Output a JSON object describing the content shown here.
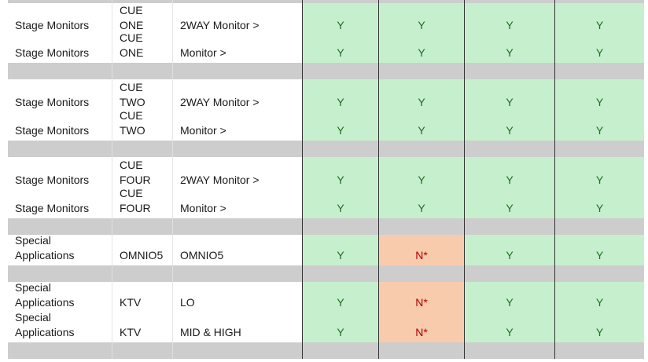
{
  "rows": [
    {
      "kind": "data",
      "c1": "Stage Monitors",
      "c2": "CUE\nONE",
      "c3": "2WAY Monitor >",
      "v": [
        "Y",
        "Y",
        "Y",
        "Y"
      ]
    },
    {
      "kind": "data",
      "c1": "Stage Monitors",
      "c2": "CUE\nONE",
      "c3": "Monitor >",
      "v": [
        "Y",
        "Y",
        "Y",
        "Y"
      ]
    },
    {
      "kind": "gap"
    },
    {
      "kind": "data",
      "c1": "Stage Monitors",
      "c2": "CUE\nTWO",
      "c3": "2WAY Monitor >",
      "v": [
        "Y",
        "Y",
        "Y",
        "Y"
      ]
    },
    {
      "kind": "data",
      "c1": "Stage Monitors",
      "c2": "CUE\nTWO",
      "c3": "Monitor >",
      "v": [
        "Y",
        "Y",
        "Y",
        "Y"
      ]
    },
    {
      "kind": "gap"
    },
    {
      "kind": "data",
      "c1": "Stage Monitors",
      "c2": "CUE\nFOUR",
      "c3": "2WAY Monitor >",
      "v": [
        "Y",
        "Y",
        "Y",
        "Y"
      ]
    },
    {
      "kind": "data",
      "c1": "Stage Monitors",
      "c2": "CUE\nFOUR",
      "c3": "Monitor >",
      "v": [
        "Y",
        "Y",
        "Y",
        "Y"
      ]
    },
    {
      "kind": "gap"
    },
    {
      "kind": "data",
      "c1": "Special\nApplications",
      "c2": "OMNIO5",
      "c3": "OMNIO5",
      "v": [
        "Y",
        "N*",
        "Y",
        "Y"
      ]
    },
    {
      "kind": "gap"
    },
    {
      "kind": "data",
      "c1": "Special\nApplications",
      "c2": "KTV",
      "c3": "LO",
      "v": [
        "Y",
        "N*",
        "Y",
        "Y"
      ]
    },
    {
      "kind": "data",
      "c1": "Special\nApplications",
      "c2": "KTV",
      "c3": "MID & HIGH",
      "v": [
        "Y",
        "N*",
        "Y",
        "Y"
      ]
    },
    {
      "kind": "gap"
    }
  ],
  "colors": {
    "yes_fill": "#c6efce",
    "yes_text": "#1f6e1f",
    "no_fill": "#f8cbad",
    "no_text": "#b00000",
    "separator_fill": "#cdcdcd"
  }
}
